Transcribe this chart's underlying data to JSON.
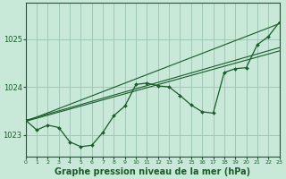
{
  "background_color": "#c8e8d8",
  "plot_bg_color": "#c8e8d8",
  "grid_color": "#a0c8b8",
  "line_color": "#1a5c2a",
  "xlabel": "Graphe pression niveau de la mer (hPa)",
  "xlabel_fontsize": 7.0,
  "xlim": [
    0,
    23
  ],
  "ylim": [
    1022.55,
    1025.75
  ],
  "yticks": [
    1023,
    1024,
    1025
  ],
  "xticks": [
    0,
    1,
    2,
    3,
    4,
    5,
    6,
    7,
    8,
    9,
    10,
    11,
    12,
    13,
    14,
    15,
    16,
    17,
    18,
    19,
    20,
    21,
    22,
    23
  ],
  "series_main": {
    "x": [
      0,
      1,
      2,
      3,
      4,
      5,
      6,
      7,
      8,
      9,
      10,
      11,
      12,
      13,
      14,
      15,
      16,
      17,
      18,
      19,
      20,
      21,
      22,
      23
    ],
    "y": [
      1023.3,
      1023.1,
      1023.2,
      1023.15,
      1022.85,
      1022.75,
      1022.78,
      1023.05,
      1023.4,
      1023.6,
      1024.05,
      1024.08,
      1024.02,
      1024.0,
      1023.82,
      1023.62,
      1023.48,
      1023.45,
      1024.3,
      1024.38,
      1024.4,
      1024.88,
      1025.05,
      1025.35
    ]
  },
  "series_linear1": {
    "x": [
      0,
      23
    ],
    "y": [
      1023.28,
      1024.75
    ]
  },
  "series_linear2": {
    "x": [
      0,
      23
    ],
    "y": [
      1023.3,
      1024.82
    ]
  },
  "series_linear3": {
    "x": [
      0,
      23
    ],
    "y": [
      1023.28,
      1025.32
    ]
  }
}
